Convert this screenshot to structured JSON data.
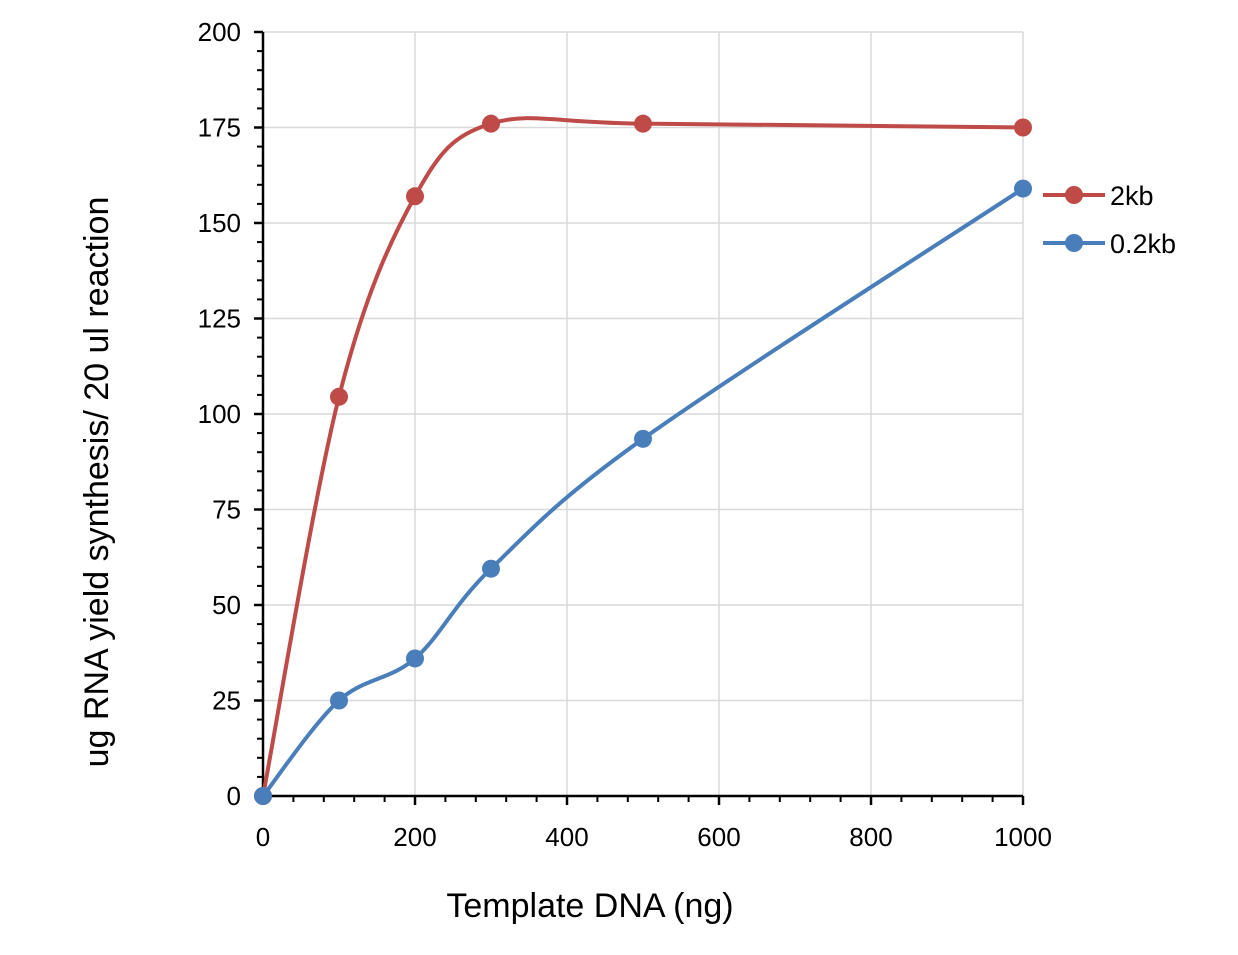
{
  "chart_data": {
    "type": "line",
    "title": "",
    "xlabel": "Template DNA (ng)",
    "ylabel": "ug RNA yield synthesis/ 20 ul reaction",
    "xlim": [
      0,
      1000
    ],
    "ylim": [
      0,
      200
    ],
    "xticks": [
      0,
      200,
      400,
      600,
      800,
      1000
    ],
    "yticks": [
      0,
      25,
      50,
      75,
      100,
      125,
      150,
      175,
      200
    ],
    "grid": true,
    "smoothed": true,
    "legend_position": "right",
    "series": [
      {
        "name": "2kb",
        "color": "#BE4B48",
        "x": [
          0,
          100,
          200,
          300,
          500,
          1000
        ],
        "y": [
          0,
          104.5,
          157,
          176,
          176,
          175
        ]
      },
      {
        "name": "0.2kb",
        "color": "#4A7EBB",
        "x": [
          0,
          100,
          200,
          300,
          500,
          1000
        ],
        "y": [
          0,
          25,
          36,
          59.5,
          93.5,
          159
        ]
      }
    ]
  }
}
